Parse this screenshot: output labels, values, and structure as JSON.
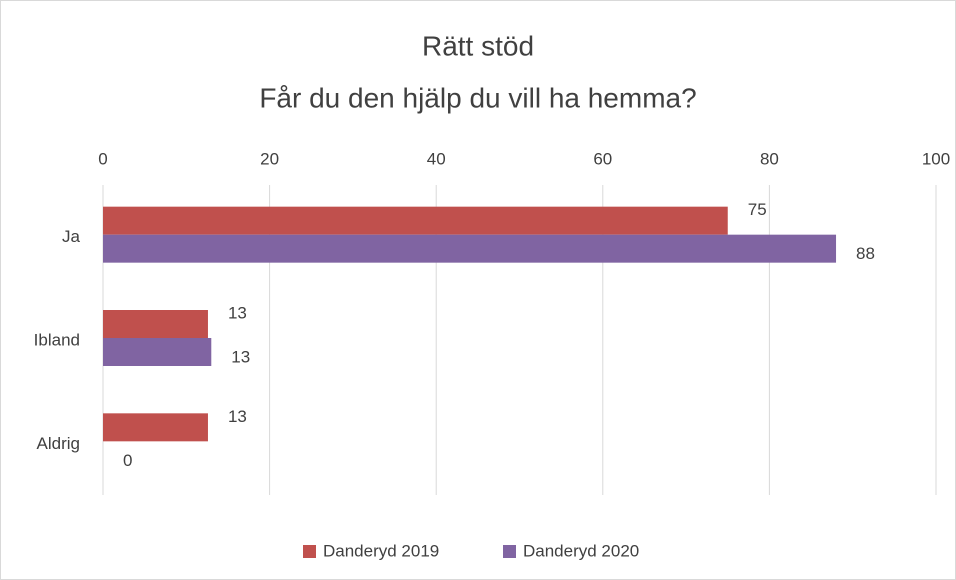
{
  "chart_data": {
    "type": "hbar",
    "title": "Rätt stöd",
    "subtitle": "Får du den hjälp du vill ha hemma?",
    "categories": [
      "Ja",
      "Ibland",
      "Aldrig"
    ],
    "series": [
      {
        "name": "Danderyd 2019",
        "color": "#c0504d",
        "values": [
          75,
          12.6,
          12.6
        ],
        "value_labels": [
          "75",
          "13",
          "13"
        ]
      },
      {
        "name": "Danderyd 2020",
        "color": "#8064a2",
        "values": [
          88,
          13,
          0
        ]
      }
    ],
    "xlim": [
      0,
      100
    ],
    "xticks": [
      0,
      20,
      40,
      60,
      80,
      100
    ],
    "grid": true,
    "legend": "bottom"
  }
}
